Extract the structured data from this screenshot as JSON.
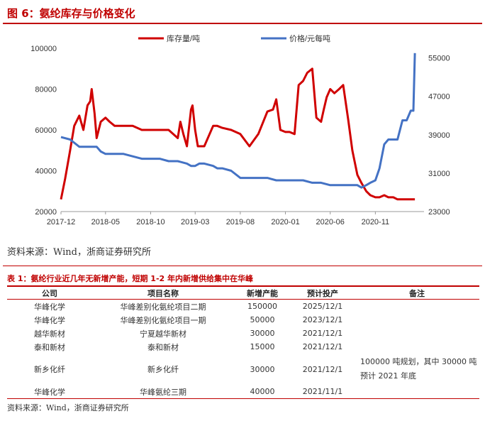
{
  "figure_title": "图 6：氨纶库存与价格变化",
  "figure_source": "资料来源：Wind，浙商证券研究所",
  "chart_data": {
    "type": "line",
    "title": "",
    "x_ticks": [
      "2017-12",
      "2018-05",
      "2018-10",
      "2019-03",
      "2019-08",
      "2020-01",
      "2020-06",
      "2020-11"
    ],
    "y_left_ticks": [
      "20000",
      "40000",
      "60000",
      "80000",
      "100000"
    ],
    "y_right_ticks": [
      "23000",
      "31000",
      "39000",
      "47000",
      "55000"
    ],
    "ylim_left": [
      20000,
      100000
    ],
    "ylim_right": [
      23000,
      57000
    ],
    "xlim": [
      "2017-12-01",
      "2021-04-15"
    ],
    "legend_position": "top",
    "series": [
      {
        "name": "库存量/吨",
        "axis": "left",
        "color": "#d00000",
        "x": [
          "2017-12-01",
          "2017-12-15",
          "2018-01-01",
          "2018-01-15",
          "2018-02-01",
          "2018-02-15",
          "2018-03-01",
          "2018-03-10",
          "2018-03-15",
          "2018-03-25",
          "2018-04-01",
          "2018-04-15",
          "2018-05-01",
          "2018-05-15",
          "2018-06-01",
          "2018-07-01",
          "2018-08-01",
          "2018-09-01",
          "2018-10-01",
          "2018-11-01",
          "2018-12-01",
          "2019-01-01",
          "2019-01-10",
          "2019-01-20",
          "2019-02-01",
          "2019-02-15",
          "2019-02-20",
          "2019-03-01",
          "2019-03-10",
          "2019-03-20",
          "2019-04-01",
          "2019-05-01",
          "2019-05-15",
          "2019-06-01",
          "2019-07-01",
          "2019-08-01",
          "2019-09-01",
          "2019-10-01",
          "2019-11-01",
          "2019-11-20",
          "2019-12-01",
          "2019-12-15",
          "2020-01-01",
          "2020-01-15",
          "2020-02-01",
          "2020-02-15",
          "2020-03-01",
          "2020-03-15",
          "2020-04-01",
          "2020-04-15",
          "2020-05-01",
          "2020-05-10",
          "2020-05-20",
          "2020-06-01",
          "2020-06-15",
          "2020-07-01",
          "2020-07-15",
          "2020-08-01",
          "2020-08-15",
          "2020-09-01",
          "2020-09-15",
          "2020-10-01",
          "2020-10-15",
          "2020-11-01",
          "2020-11-15",
          "2020-12-01",
          "2020-12-15",
          "2021-01-01",
          "2021-01-15",
          "2021-02-01",
          "2021-02-15",
          "2021-03-01",
          "2021-03-15"
        ],
        "values": [
          26000,
          36000,
          50000,
          62000,
          67000,
          60000,
          72000,
          74000,
          80000,
          68000,
          56000,
          64000,
          66000,
          64000,
          62000,
          62000,
          62000,
          60000,
          60000,
          60000,
          60000,
          56000,
          64000,
          58000,
          52000,
          70000,
          72000,
          60000,
          52000,
          52000,
          52000,
          62000,
          62000,
          61000,
          60000,
          58000,
          52000,
          58000,
          69000,
          70000,
          75000,
          60000,
          59000,
          59000,
          58000,
          82000,
          84000,
          88000,
          90000,
          66000,
          64000,
          70000,
          76000,
          80000,
          78000,
          80000,
          82000,
          65000,
          50000,
          38000,
          34000,
          30000,
          28000,
          27000,
          27000,
          28000,
          27000,
          27000,
          26000,
          26000,
          26000,
          26000,
          26000
        ]
      },
      {
        "name": "价格/元每吨",
        "axis": "right",
        "color": "#4472c4",
        "x": [
          "2017-12-01",
          "2018-01-01",
          "2018-02-01",
          "2018-03-01",
          "2018-04-01",
          "2018-04-15",
          "2018-05-01",
          "2018-06-01",
          "2018-07-01",
          "2018-08-01",
          "2018-09-01",
          "2018-10-01",
          "2018-11-01",
          "2018-12-01",
          "2019-01-01",
          "2019-02-01",
          "2019-02-15",
          "2019-03-01",
          "2019-03-15",
          "2019-04-01",
          "2019-05-01",
          "2019-05-15",
          "2019-06-01",
          "2019-07-01",
          "2019-08-01",
          "2019-09-01",
          "2019-10-01",
          "2019-11-01",
          "2019-12-01",
          "2020-01-01",
          "2020-02-01",
          "2020-03-01",
          "2020-04-01",
          "2020-05-01",
          "2020-06-01",
          "2020-07-01",
          "2020-08-01",
          "2020-09-01",
          "2020-09-15",
          "2020-10-01",
          "2020-10-15",
          "2020-11-01",
          "2020-11-15",
          "2020-12-01",
          "2020-12-15",
          "2021-01-01",
          "2021-01-15",
          "2021-02-01",
          "2021-02-15",
          "2021-03-01",
          "2021-03-10",
          "2021-03-15"
        ],
        "values": [
          38500,
          38000,
          36500,
          36500,
          36500,
          35500,
          35000,
          35000,
          35000,
          34500,
          34000,
          34000,
          34000,
          33500,
          33500,
          33000,
          32500,
          32500,
          33000,
          33000,
          32500,
          32000,
          32000,
          31500,
          30000,
          30000,
          30000,
          30000,
          29500,
          29500,
          29500,
          29500,
          29000,
          29000,
          28500,
          28500,
          28500,
          28500,
          28000,
          28500,
          29000,
          29500,
          32000,
          37000,
          38000,
          38000,
          38000,
          42000,
          42000,
          44000,
          44000,
          56000
        ]
      }
    ]
  },
  "table": {
    "title": "表 1：氨纶行业近几年无新增产能，短期 1-2 年内新增供给集中在华峰",
    "headers": [
      "公司",
      "项目名称",
      "新增产能",
      "预计投产",
      "备注"
    ],
    "rows": [
      [
        "华峰化学",
        "华峰差别化氨纶项目二期",
        "150000",
        "2025/12/1",
        ""
      ],
      [
        "华峰化学",
        "华峰差别化氨纶项目一期",
        "50000",
        "2023/12/1",
        ""
      ],
      [
        "越华新材",
        "宁夏越华新材",
        "30000",
        "2021/12/1",
        ""
      ],
      [
        "泰和新材",
        "泰和新材",
        "15000",
        "2021/12/1",
        ""
      ],
      [
        "新乡化纤",
        "新乡化纤",
        "30000",
        "2021/12/1",
        "100000 吨规划，其中 30000 吨预计 2021 年底"
      ],
      [
        "华峰化学",
        "华峰氨纶三期",
        "40000",
        "2021/11/1",
        ""
      ]
    ],
    "source": "资料来源：Wind，浙商证券研究所"
  }
}
